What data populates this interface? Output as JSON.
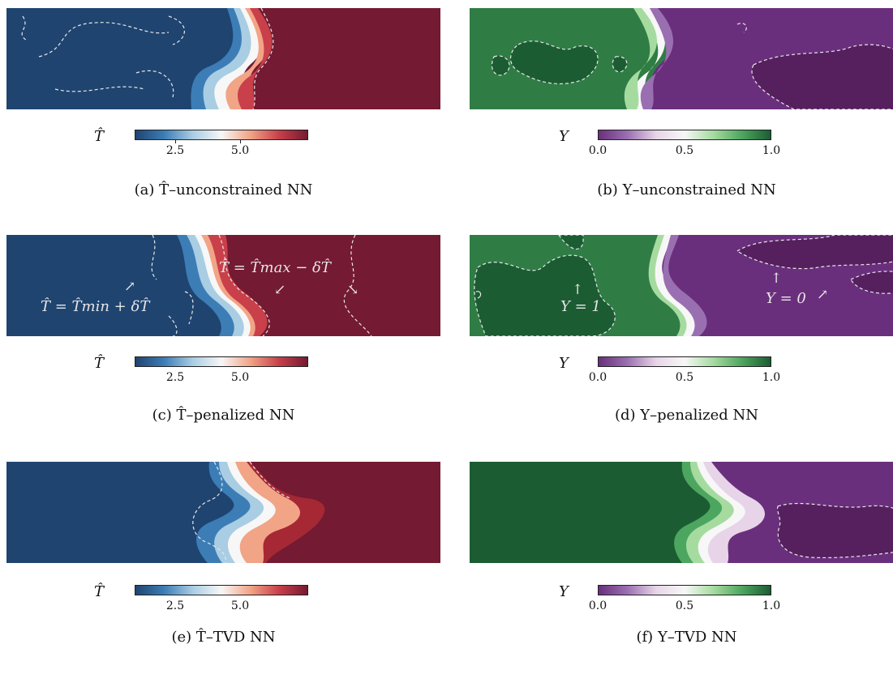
{
  "colors": {
    "t_cold": "#1f4470",
    "t_hot": "#741a32",
    "y_high": "#2f7d45",
    "y_low": "#6a2f7c",
    "t_colorbar": [
      "#1f4470",
      "#3c7db6",
      "#a9cde3",
      "#f7f7f7",
      "#f2a487",
      "#c9404a",
      "#741a32"
    ],
    "y_colorbar": [
      "#6a2f7c",
      "#9a6fb1",
      "#e7d4e8",
      "#f7f7f7",
      "#a6dba0",
      "#4da65f",
      "#1c5c33"
    ]
  },
  "panels": [
    {
      "id": "a",
      "label": "(a)",
      "symbol": "T̂",
      "ticks": [
        "2.5",
        "5.0"
      ],
      "caption": "T̂–unconstrained NN",
      "kind": "T"
    },
    {
      "id": "b",
      "label": "(b)",
      "symbol": "Y",
      "ticks": [
        "0.0",
        "0.5",
        "1.0"
      ],
      "caption": "Y–unconstrained NN",
      "kind": "Y"
    },
    {
      "id": "c",
      "label": "(c)",
      "symbol": "T̂",
      "ticks": [
        "2.5",
        "5.0"
      ],
      "caption": "T̂–penalized NN",
      "kind": "T",
      "annotations": [
        "T̂ = T̂min + δT̂",
        "T̂ = T̂max − δT̂"
      ]
    },
    {
      "id": "d",
      "label": "(d)",
      "symbol": "Y",
      "ticks": [
        "0.0",
        "0.5",
        "1.0"
      ],
      "caption": "Y–penalized NN",
      "kind": "Y",
      "annotations": [
        "Y = 1",
        "Y = 0"
      ]
    },
    {
      "id": "e",
      "label": "(e)",
      "symbol": "T̂",
      "ticks": [
        "2.5",
        "5.0"
      ],
      "caption": "T̂–TVD NN",
      "kind": "T"
    },
    {
      "id": "f",
      "label": "(f)",
      "symbol": "Y",
      "ticks": [
        "0.0",
        "0.5",
        "1.0"
      ],
      "caption": "Y–TVD NN",
      "kind": "Y"
    }
  ],
  "colorbar_ranges": {
    "T": {
      "min": 0.6,
      "max": 7.3
    },
    "Y": {
      "min": 0.0,
      "max": 1.0
    }
  }
}
